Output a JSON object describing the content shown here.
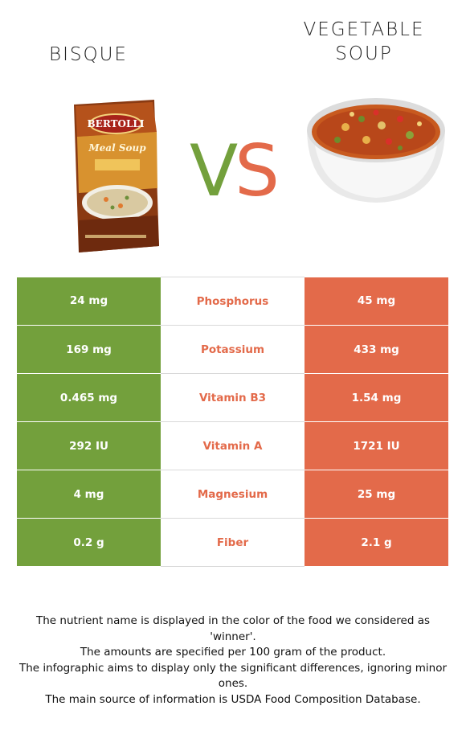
{
  "foods": {
    "left": {
      "name_line1": "BISQUE",
      "name_line2": "",
      "color": "#73a03c",
      "image_icon": "soup-carton-icon"
    },
    "right": {
      "name_line1": "VEGETABLE",
      "name_line2": "SOUP",
      "color": "#e36a4a",
      "image_icon": "soup-bowl-icon"
    }
  },
  "vs": {
    "v": "V",
    "s": "S"
  },
  "box_text": {
    "brand": "BERTOLLI",
    "product": "Meal Soup"
  },
  "rows": [
    {
      "nutrient": "Phosphorus",
      "left": "24 mg",
      "right": "45 mg"
    },
    {
      "nutrient": "Potassium",
      "left": "169 mg",
      "right": "433 mg"
    },
    {
      "nutrient": "Vitamin B3",
      "left": "0.465 mg",
      "right": "1.54 mg"
    },
    {
      "nutrient": "Vitamin A",
      "left": "292 IU",
      "right": "1721 IU"
    },
    {
      "nutrient": "Magnesium",
      "left": "4 mg",
      "right": "25 mg"
    },
    {
      "nutrient": "Fiber",
      "left": "0.2 g",
      "right": "2.1 g"
    }
  ],
  "notes": [
    "The nutrient name is displayed in the color of the food we considered as 'winner'.",
    "The amounts are specified per 100 gram of the product.",
    "The infographic aims to display only the significant differences, ignoring minor ones.",
    "The main source of information is USDA Food Composition Database."
  ]
}
